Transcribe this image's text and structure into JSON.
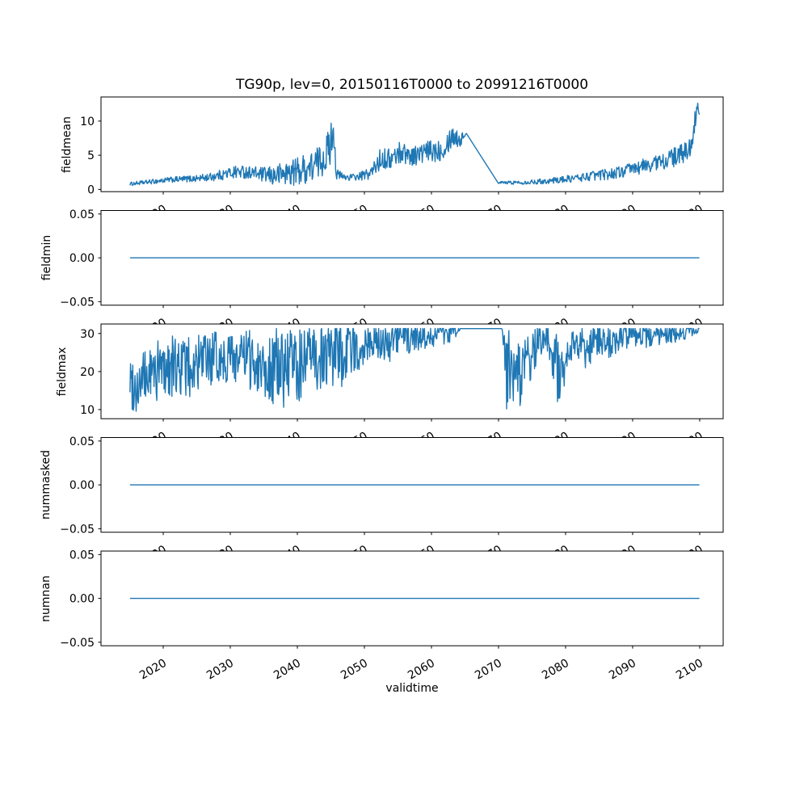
{
  "figure": {
    "title": "TG90p, lev=0, 20150116T0000 to 20991216T0000",
    "xlabel": "validtime",
    "background": "#ffffff",
    "text_color": "#000000",
    "frame_color": "#000000",
    "line_color": "#1f77b4",
    "xlim": [
      2010.72,
      2103.5
    ],
    "xticks": [
      2020,
      2030,
      2040,
      2050,
      2060,
      2070,
      2080,
      2090,
      2100
    ],
    "xtick_labels": [
      "2020",
      "2030",
      "2040",
      "2050",
      "2060",
      "2070",
      "2080",
      "2090",
      "2100"
    ],
    "xtick_rotation_deg": 30
  },
  "chart_data": [
    {
      "type": "line",
      "name": "fieldmean",
      "ylabel": "fieldmean",
      "ylim": [
        -0.33,
        13.53
      ],
      "yticks": [
        0,
        5,
        10
      ],
      "ytick_labels": [
        "0",
        "5",
        "10"
      ],
      "x_range": [
        2015.042,
        2099.958
      ],
      "grid": false,
      "legend": "none",
      "series": {
        "kind": "noisy",
        "seed": 1234,
        "samples_per_year": 12,
        "clip": [
          0.25,
          12.95
        ],
        "anchors": [
          [
            2015.0,
            0.8,
            0.25
          ],
          [
            2017,
            1.0,
            0.3
          ],
          [
            2019,
            1.2,
            0.35
          ],
          [
            2021,
            1.4,
            0.4
          ],
          [
            2023,
            1.5,
            0.45
          ],
          [
            2025,
            1.6,
            0.5
          ],
          [
            2027,
            1.8,
            0.6
          ],
          [
            2029,
            2.2,
            0.8
          ],
          [
            2031,
            2.6,
            1.0
          ],
          [
            2033,
            2.5,
            0.9
          ],
          [
            2035,
            2.1,
            1.1
          ],
          [
            2036.5,
            2.0,
            1.5
          ],
          [
            2038,
            2.3,
            1.8
          ],
          [
            2040,
            2.7,
            2.1
          ],
          [
            2042,
            3.2,
            2.3
          ],
          [
            2043.5,
            4.2,
            2.5
          ],
          [
            2044.8,
            6.0,
            3.0
          ],
          [
            2045.4,
            9.3,
            2.4
          ],
          [
            2045.8,
            2.2,
            0.9
          ],
          [
            2047,
            1.8,
            0.5
          ],
          [
            2049,
            1.8,
            0.5
          ],
          [
            2051,
            2.4,
            1.0
          ],
          [
            2052.5,
            4.6,
            1.6
          ],
          [
            2054,
            4.4,
            1.5
          ],
          [
            2055.5,
            5.6,
            1.7
          ],
          [
            2057,
            4.9,
            1.4
          ],
          [
            2058.5,
            5.2,
            1.6
          ],
          [
            2060,
            5.6,
            1.7
          ],
          [
            2061.5,
            5.9,
            1.7
          ],
          [
            2063.2,
            8.0,
            1.7
          ],
          [
            2064.2,
            7.2,
            1.3
          ],
          [
            2065.2,
            8.2,
            0
          ],
          [
            2070.0,
            0.85,
            0
          ],
          [
            2070.3,
            1.0,
            0.2
          ],
          [
            2072,
            1.0,
            0.25
          ],
          [
            2074,
            1.05,
            0.3
          ],
          [
            2076,
            1.15,
            0.35
          ],
          [
            2078,
            1.3,
            0.45
          ],
          [
            2080,
            1.5,
            0.5
          ],
          [
            2082,
            1.7,
            0.6
          ],
          [
            2084,
            2.0,
            0.7
          ],
          [
            2086,
            2.2,
            0.8
          ],
          [
            2088,
            2.5,
            0.9
          ],
          [
            2090,
            3.0,
            1.0
          ],
          [
            2092,
            3.5,
            1.1
          ],
          [
            2094,
            4.0,
            1.2
          ],
          [
            2096,
            4.6,
            1.4
          ],
          [
            2097.5,
            5.2,
            1.5
          ],
          [
            2098.6,
            6.2,
            1.4
          ],
          [
            2099.2,
            9.5,
            1.6
          ],
          [
            2099.7,
            11.8,
            1.0
          ],
          [
            2099.958,
            10.8,
            0.3
          ]
        ]
      }
    },
    {
      "type": "line",
      "name": "fieldmin",
      "ylabel": "fieldmin",
      "ylim": [
        -0.054,
        0.054
      ],
      "yticks": [
        0.05,
        0,
        -0.05
      ],
      "ytick_labels": [
        "0.05",
        "0.00",
        "−0.05"
      ],
      "x_range": [
        2015.042,
        2099.958
      ],
      "grid": false,
      "legend": "none",
      "series": {
        "kind": "constant",
        "value": 0
      }
    },
    {
      "type": "line",
      "name": "fieldmax",
      "ylabel": "fieldmax",
      "ylim": [
        7.6,
        32.5
      ],
      "yticks": [
        10,
        20,
        30
      ],
      "ytick_labels": [
        "10",
        "20",
        "30"
      ],
      "x_range": [
        2015.042,
        2099.958
      ],
      "grid": false,
      "legend": "none",
      "series": {
        "kind": "noisy",
        "seed": 99,
        "samples_per_year": 12,
        "clip": [
          8.8,
          31.32
        ],
        "anchors": [
          [
            2015,
            18,
            7
          ],
          [
            2016,
            16,
            7.5
          ],
          [
            2018,
            19,
            8
          ],
          [
            2020,
            21,
            8
          ],
          [
            2022,
            21.5,
            8
          ],
          [
            2024,
            21,
            8
          ],
          [
            2026,
            22.5,
            7.5
          ],
          [
            2028,
            23.5,
            7
          ],
          [
            2030,
            24,
            7
          ],
          [
            2032,
            23.5,
            7.5
          ],
          [
            2034,
            22.5,
            8.5
          ],
          [
            2036,
            21.5,
            10
          ],
          [
            2038,
            21,
            10.5
          ],
          [
            2040,
            21.5,
            10.5
          ],
          [
            2042,
            23,
            10
          ],
          [
            2044,
            24.5,
            9
          ],
          [
            2046,
            24,
            9
          ],
          [
            2048,
            25.5,
            7.5
          ],
          [
            2050,
            27.5,
            5.5
          ],
          [
            2052,
            28.5,
            5
          ],
          [
            2054,
            28,
            6
          ],
          [
            2056,
            29,
            4.5
          ],
          [
            2058,
            29.3,
            4
          ],
          [
            2060,
            29.8,
            3.5
          ],
          [
            2062,
            30.2,
            3
          ],
          [
            2063.5,
            30.5,
            2.5
          ],
          [
            2064.3,
            31.3,
            0
          ],
          [
            2070.5,
            31.3,
            0
          ],
          [
            2071.2,
            21,
            11
          ],
          [
            2072.5,
            18.5,
            9
          ],
          [
            2074,
            20,
            8.5
          ],
          [
            2075.5,
            26.5,
            5.5
          ],
          [
            2077,
            29.5,
            2.5
          ],
          [
            2078.3,
            24,
            8
          ],
          [
            2079.0,
            19,
            9
          ],
          [
            2080,
            24,
            7
          ],
          [
            2081.5,
            28,
            4
          ],
          [
            2083,
            26.5,
            6
          ],
          [
            2084.5,
            28,
            4.5
          ],
          [
            2086,
            27.5,
            5
          ],
          [
            2088,
            29,
            3.5
          ],
          [
            2090,
            29.5,
            3.2
          ],
          [
            2092,
            29.2,
            4
          ],
          [
            2094,
            30,
            3
          ],
          [
            2096,
            30.2,
            2.8
          ],
          [
            2098,
            30.6,
            2.2
          ],
          [
            2099.958,
            30.9,
            1.2
          ]
        ]
      }
    },
    {
      "type": "line",
      "name": "nummasked",
      "ylabel": "nummasked",
      "ylim": [
        -0.054,
        0.054
      ],
      "yticks": [
        0.05,
        0,
        -0.05
      ],
      "ytick_labels": [
        "0.05",
        "0.00",
        "−0.05"
      ],
      "x_range": [
        2015.042,
        2099.958
      ],
      "grid": false,
      "legend": "none",
      "series": {
        "kind": "constant",
        "value": 0
      }
    },
    {
      "type": "line",
      "name": "numnan",
      "ylabel": "numnan",
      "ylim": [
        -0.054,
        0.054
      ],
      "yticks": [
        0.05,
        0,
        -0.05
      ],
      "ytick_labels": [
        "0.05",
        "0.00",
        "−0.05"
      ],
      "x_range": [
        2015.042,
        2099.958
      ],
      "grid": false,
      "legend": "none",
      "series": {
        "kind": "constant",
        "value": 0
      }
    }
  ]
}
